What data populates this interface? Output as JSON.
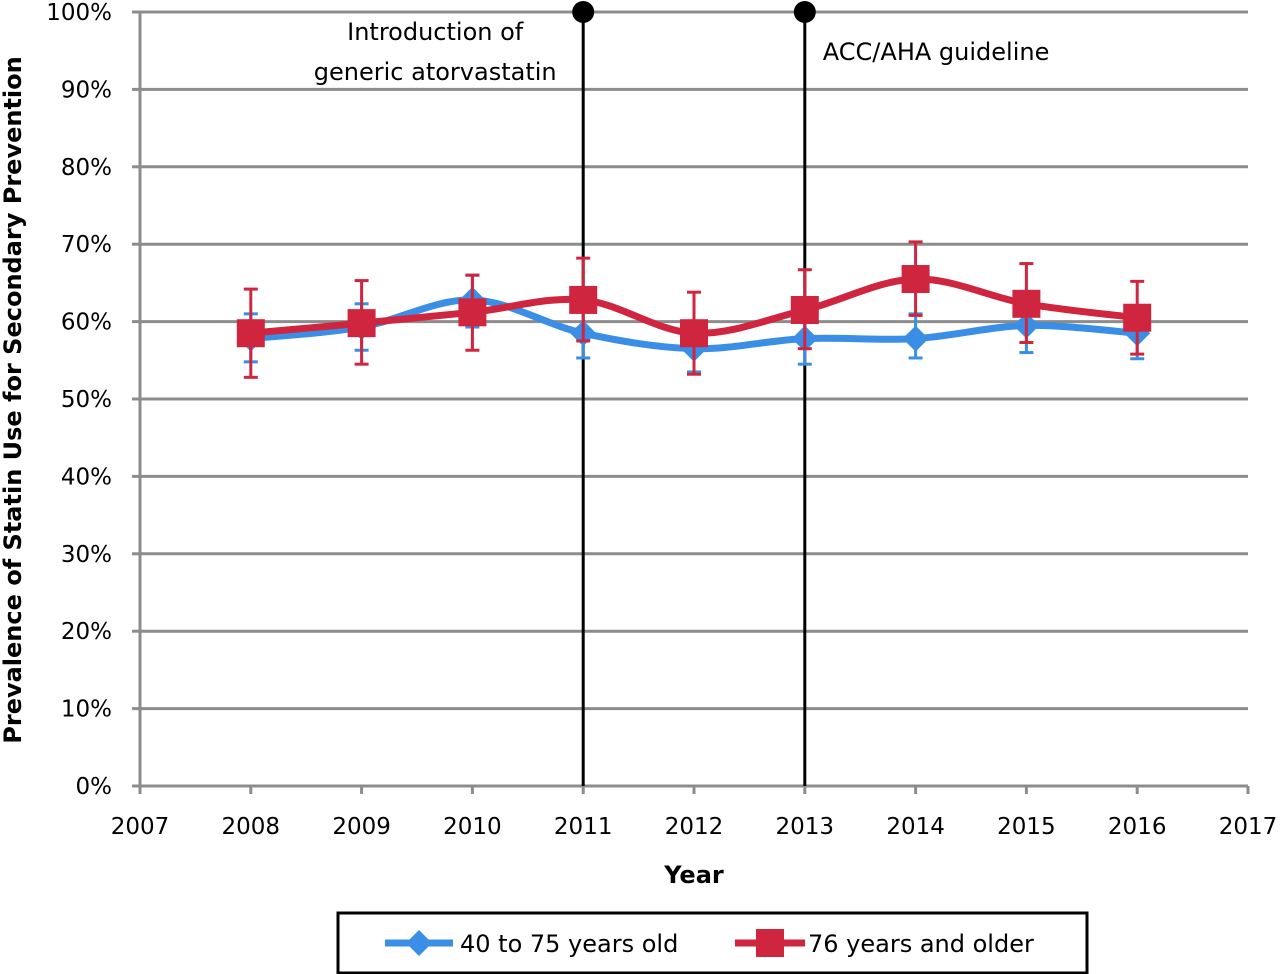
{
  "chart_data": {
    "type": "line",
    "title": "",
    "xlabel": "Year",
    "ylabel": "Prevalence of Statin Use for Secondary Prevention",
    "xlim": [
      2007,
      2017
    ],
    "ylim": [
      0,
      100
    ],
    "x_ticks": [
      "2007",
      "2008",
      "2009",
      "2010",
      "2011",
      "2012",
      "2013",
      "2014",
      "2015",
      "2016",
      "2017"
    ],
    "y_ticks": [
      "0%",
      "10%",
      "20%",
      "30%",
      "40%",
      "50%",
      "60%",
      "70%",
      "80%",
      "90%",
      "100%"
    ],
    "grid": "horizontal",
    "legend_position": "bottom",
    "x": [
      2008,
      2009,
      2010,
      2011,
      2012,
      2013,
      2014,
      2015,
      2016
    ],
    "series": [
      {
        "name": "40 to 75 years old",
        "color": "#3A8EE6",
        "marker": "diamond",
        "values": [
          57.8,
          59.3,
          62.8,
          58.5,
          56.5,
          57.8,
          57.8,
          59.5,
          58.5
        ],
        "err_low": [
          54.8,
          56.3,
          59.3,
          55.3,
          53.5,
          54.5,
          55.3,
          56.0,
          55.2
        ],
        "err_high": [
          61.0,
          62.3,
          66.0,
          62.0,
          59.5,
          61.0,
          61.0,
          63.0,
          61.5
        ]
      },
      {
        "name": "76 years and older",
        "color": "#D0253F",
        "marker": "square",
        "values": [
          58.5,
          59.8,
          61.2,
          62.8,
          58.5,
          61.5,
          65.5,
          62.3,
          60.5
        ],
        "err_low": [
          52.8,
          54.5,
          56.3,
          57.5,
          53.2,
          56.5,
          60.8,
          57.3,
          55.8
        ],
        "err_high": [
          64.2,
          65.3,
          66.0,
          68.2,
          63.8,
          66.7,
          70.3,
          67.5,
          65.2
        ]
      }
    ],
    "annotations": [
      {
        "x": 2011,
        "lines": [
          "Introduction of",
          "generic atorvastatin"
        ]
      },
      {
        "x": 2013,
        "lines": [
          "ACC/AHA guideline"
        ]
      }
    ]
  }
}
